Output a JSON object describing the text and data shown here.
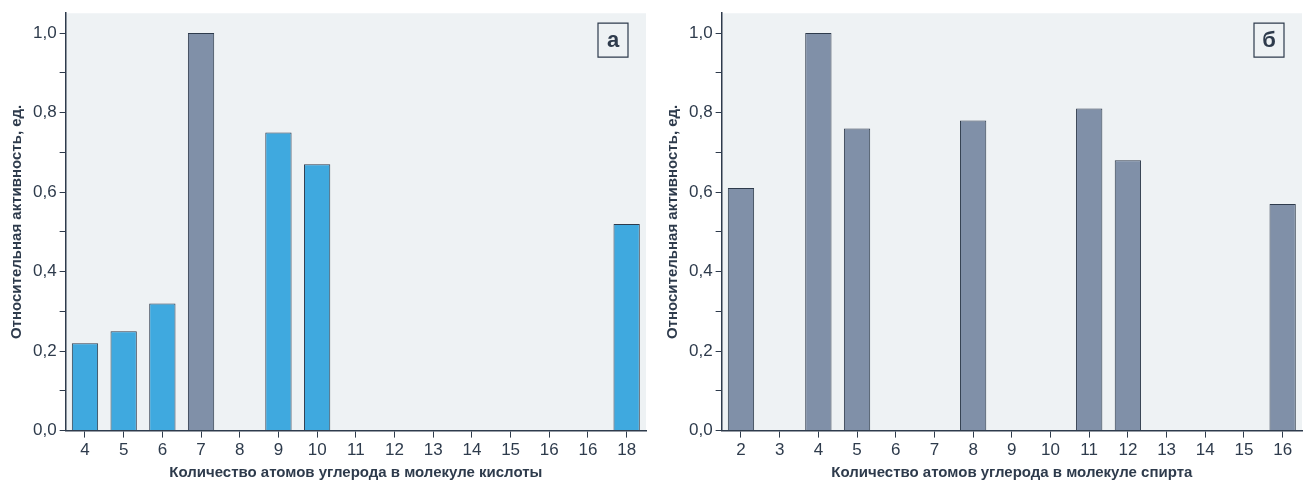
{
  "chart_data": [
    {
      "type": "bar",
      "xlabel": "Количество атомов углерода в молекуле кислоты",
      "ylabel": "Относительная активность, ед.",
      "annotations": [
        "а"
      ],
      "categories": [
        "4",
        "5",
        "6",
        "7",
        "8",
        "9",
        "10",
        "11",
        "12",
        "13",
        "14",
        "15",
        "16",
        "16",
        "18"
      ],
      "values": [
        0.22,
        0.25,
        0.32,
        1.0,
        null,
        0.75,
        0.67,
        null,
        null,
        null,
        null,
        null,
        null,
        null,
        0.52
      ],
      "colors": [
        "#3fa9df",
        "#3fa9df",
        "#3fa9df",
        "#8090a8",
        "#3fa9df",
        "#3fa9df",
        "#3fa9df",
        "#3fa9df",
        "#3fa9df",
        "#3fa9df",
        "#3fa9df",
        "#3fa9df",
        "#3fa9df",
        "#3fa9df",
        "#3fa9df"
      ],
      "ylim": [
        0,
        1.05
      ],
      "yticks": [
        {
          "value": 0,
          "label": "0,0"
        },
        {
          "value": 0.1,
          "label": null
        },
        {
          "value": 0.2,
          "label": "0,2"
        },
        {
          "value": 0.3,
          "label": null
        },
        {
          "value": 0.4,
          "label": "0,4"
        },
        {
          "value": 0.5,
          "label": null
        },
        {
          "value": 0.6,
          "label": "0,6"
        },
        {
          "value": 0.7,
          "label": null
        },
        {
          "value": 0.8,
          "label": "0,8"
        },
        {
          "value": 0.9,
          "label": null
        },
        {
          "value": 1.0,
          "label": "1,0"
        }
      ],
      "grid": false
    },
    {
      "type": "bar",
      "xlabel": "Количество атомов углерода в молекуле спирта",
      "ylabel": "Относительная активность, ед.",
      "annotations": [
        "б"
      ],
      "categories": [
        "2",
        "3",
        "4",
        "5",
        "6",
        "7",
        "8",
        "9",
        "10",
        "11",
        "12",
        "13",
        "14",
        "15",
        "16"
      ],
      "values": [
        0.61,
        null,
        1.0,
        0.76,
        null,
        null,
        0.78,
        null,
        null,
        0.81,
        0.68,
        null,
        null,
        null,
        0.57
      ],
      "color": "#8090a8",
      "ylim": [
        0,
        1.05
      ],
      "yticks": [
        {
          "value": 0,
          "label": "0,0"
        },
        {
          "value": 0.1,
          "label": null
        },
        {
          "value": 0.2,
          "label": "0,2"
        },
        {
          "value": 0.3,
          "label": null
        },
        {
          "value": 0.4,
          "label": "0,4"
        },
        {
          "value": 0.5,
          "label": null
        },
        {
          "value": 0.6,
          "label": "0,6"
        },
        {
          "value": 0.7,
          "label": null
        },
        {
          "value": 0.8,
          "label": "0,8"
        },
        {
          "value": 0.9,
          "label": null
        },
        {
          "value": 1.0,
          "label": "1,0"
        }
      ],
      "grid": false
    }
  ]
}
